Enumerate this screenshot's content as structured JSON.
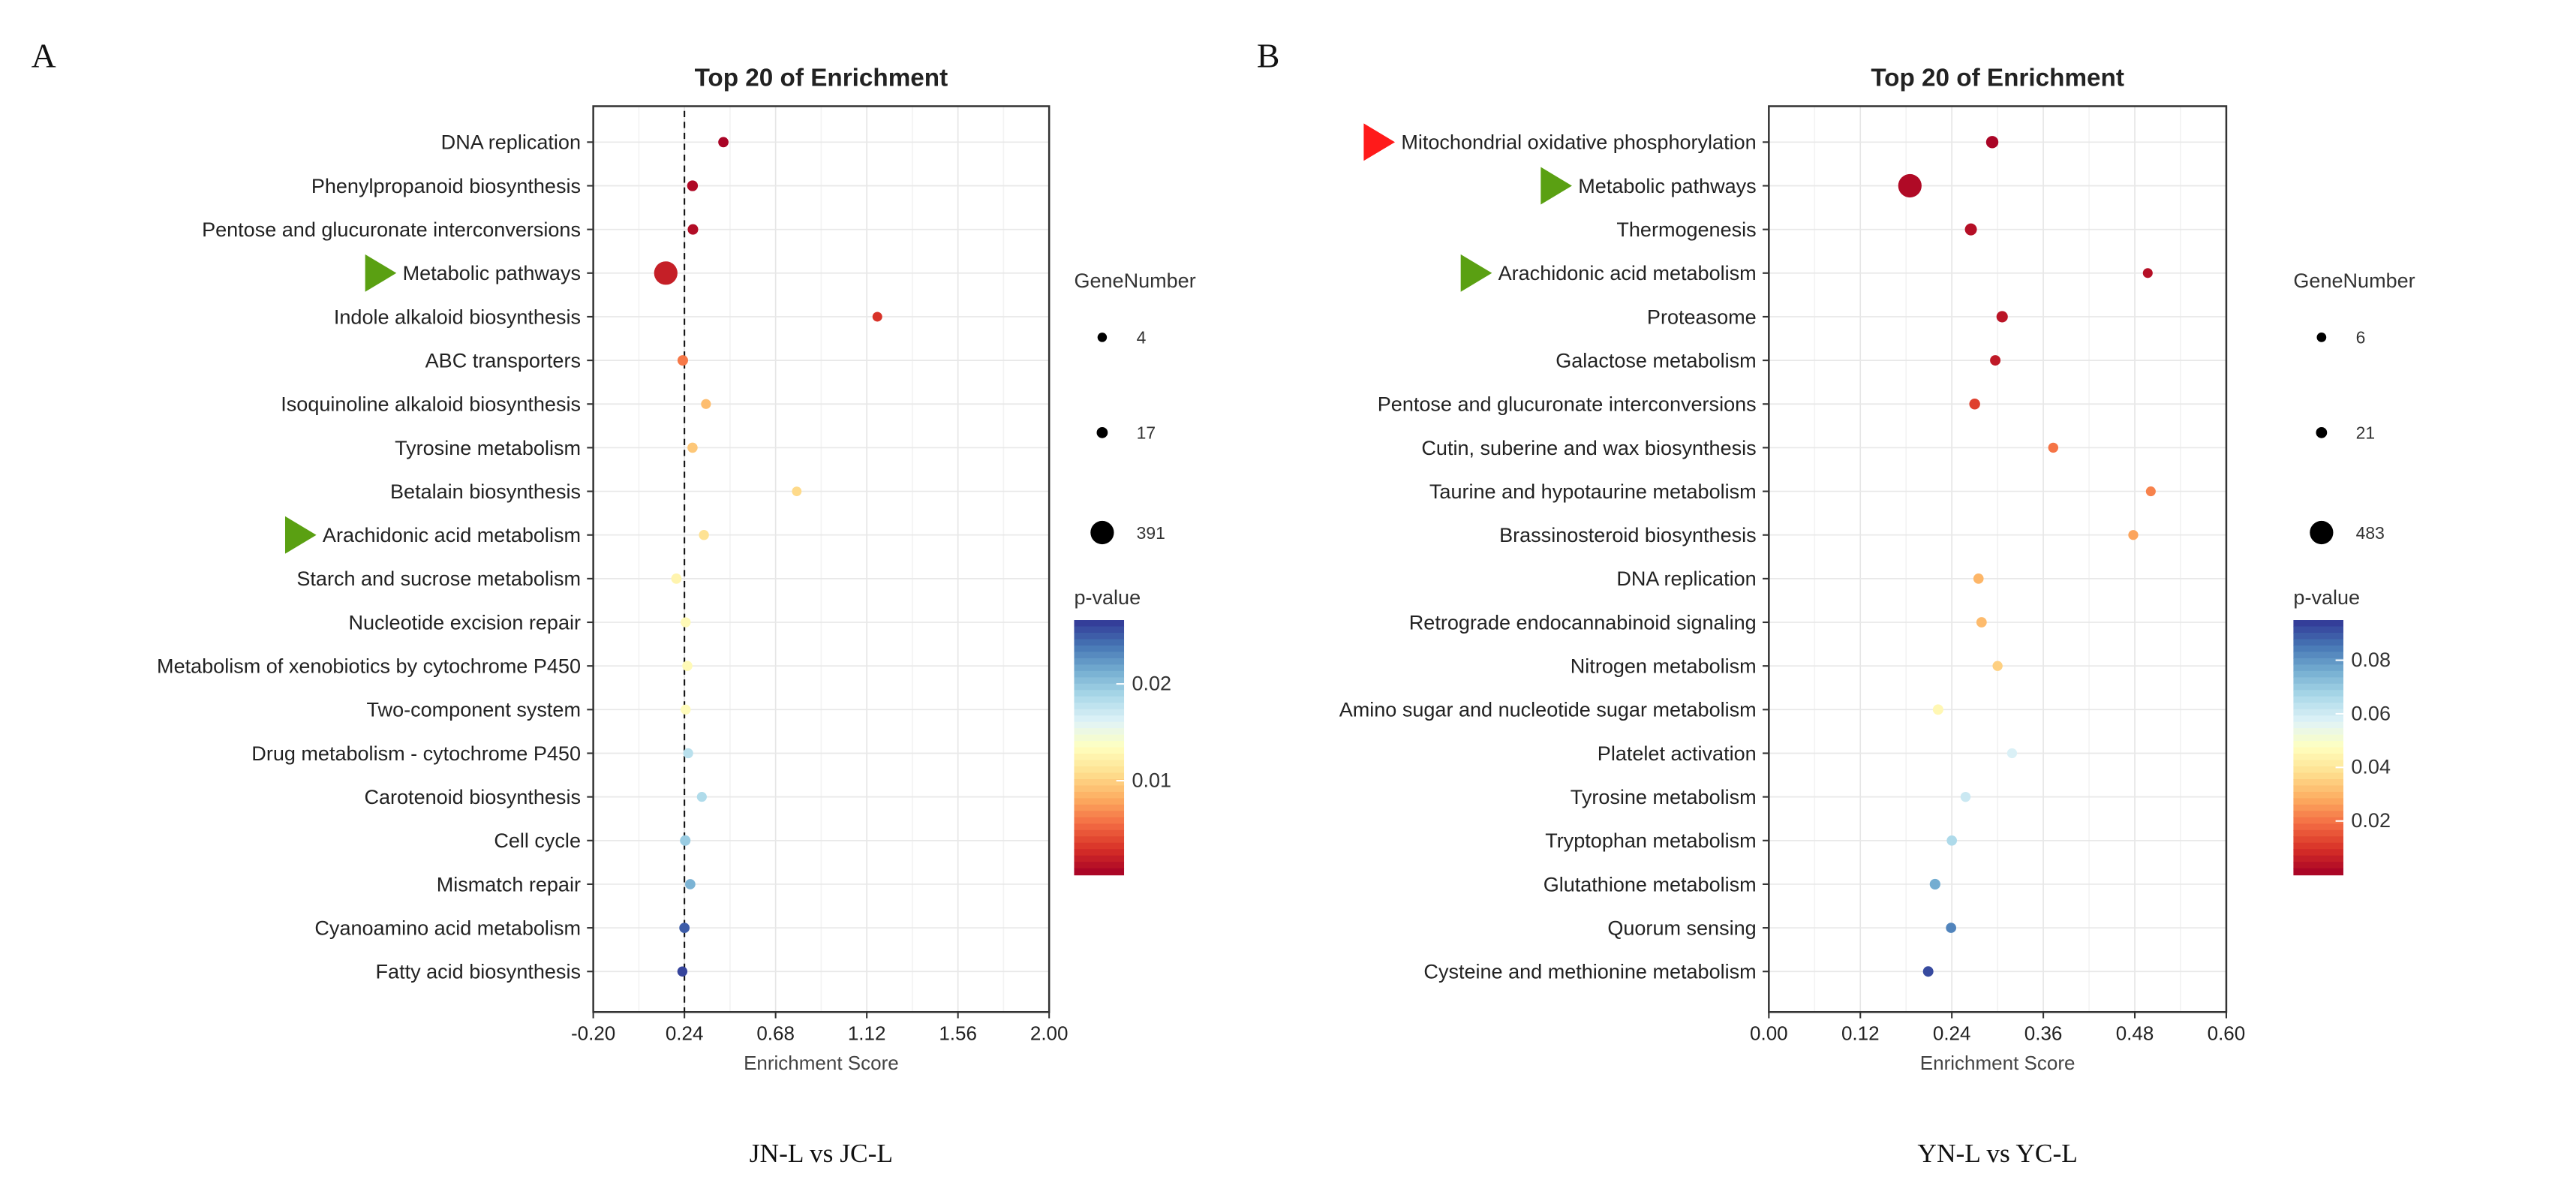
{
  "chart_data": [
    {
      "type": "scatter",
      "panel_label": "A",
      "title": "Top 20 of  Enrichment",
      "xlabel": "Enrichment Score",
      "caption": "JN-L vs JC-L",
      "xlim": [
        -0.2,
        2.0
      ],
      "xticks": [
        "-0.20",
        "0.24",
        "0.68",
        "1.12",
        "1.56",
        "2.00"
      ],
      "reference_line_x": 0.24,
      "size_legend_title": "GeneNumber",
      "size_legend": [
        4,
        17,
        391
      ],
      "color_legend_title": "p-value",
      "color_range": [
        0.0003,
        0.0266
      ],
      "color_ticks": [
        0.01,
        0.02
      ],
      "color_tick_labels": [
        "0.01",
        "0.02"
      ],
      "categories": [
        "DNA replication",
        "Phenylpropanoid biosynthesis",
        "Pentose and glucuronate interconversions",
        "Metabolic pathways",
        "Indole alkaloid biosynthesis",
        "ABC transporters",
        "Isoquinoline alkaloid biosynthesis",
        "Tyrosine metabolism",
        "Betalain biosynthesis",
        "Arachidonic acid metabolism",
        "Starch and sucrose metabolism",
        "Nucleotide excision repair",
        "Metabolism of xenobiotics by cytochrome P450",
        "Two-component system",
        "Drug metabolism - cytochrome P450",
        "Carotenoid biosynthesis",
        "Cell cycle",
        "Mismatch repair",
        "Cyanoamino acid metabolism",
        "Fatty acid biosynthesis"
      ],
      "x": [
        0.428,
        0.279,
        0.281,
        0.15,
        1.171,
        0.232,
        0.344,
        0.279,
        0.782,
        0.334,
        0.201,
        0.246,
        0.254,
        0.246,
        0.258,
        0.324,
        0.244,
        0.268,
        0.24,
        0.23
      ],
      "pvalue": [
        0.0005,
        0.0008,
        0.001,
        0.002,
        0.003,
        0.006,
        0.009,
        0.0095,
        0.0105,
        0.011,
        0.0125,
        0.013,
        0.013,
        0.0132,
        0.018,
        0.0185,
        0.0195,
        0.021,
        0.025,
        0.026
      ],
      "gene_number": [
        10,
        14,
        12,
        391,
        6,
        12,
        7,
        9,
        5,
        8,
        10,
        8,
        9,
        8,
        8,
        7,
        12,
        10,
        10,
        8
      ],
      "markers": [
        {
          "category": "Metabolic pathways",
          "color": "#5aa012"
        },
        {
          "category": "Arachidonic acid metabolism",
          "color": "#5aa012"
        }
      ]
    },
    {
      "type": "scatter",
      "panel_label": "B",
      "title": "Top 20 of  Enrichment",
      "xlabel": "Enrichment Score",
      "caption": "YN-L vs YC-L",
      "xlim": [
        0.0,
        0.6
      ],
      "xticks": [
        "0.00",
        "0.12",
        "0.24",
        "0.36",
        "0.48",
        "0.60"
      ],
      "size_legend_title": "GeneNumber",
      "size_legend": [
        6,
        21,
        483
      ],
      "color_legend_title": "p-value",
      "color_range": [
        0.0,
        0.095
      ],
      "color_ticks": [
        0.02,
        0.04,
        0.06,
        0.08
      ],
      "color_tick_labels": [
        "0.02",
        "0.04",
        "0.06",
        "0.08"
      ],
      "categories": [
        "Mitochondrial oxidative phosphorylation",
        "Metabolic pathways",
        "Thermogenesis",
        "Arachidonic acid metabolism",
        "Proteasome",
        "Galactose metabolism",
        "Pentose and glucuronate interconversions",
        "Cutin, suberine and wax biosynthesis",
        "Taurine and hypotaurine metabolism",
        "Brassinosteroid biosynthesis",
        "DNA replication",
        "Retrograde endocannabinoid signaling",
        "Nitrogen metabolism",
        "Amino sugar and nucleotide sugar metabolism",
        "Platelet activation",
        "Tyrosine metabolism",
        "Tryptophan metabolism",
        "Glutathione metabolism",
        "Quorum sensing",
        "Cysteine and methionine metabolism"
      ],
      "x": [
        0.293,
        0.185,
        0.265,
        0.497,
        0.306,
        0.297,
        0.27,
        0.373,
        0.501,
        0.478,
        0.275,
        0.279,
        0.3,
        0.222,
        0.319,
        0.258,
        0.24,
        0.218,
        0.239,
        0.209
      ],
      "pvalue": [
        0.001,
        0.002,
        0.003,
        0.003,
        0.004,
        0.005,
        0.012,
        0.02,
        0.022,
        0.027,
        0.03,
        0.031,
        0.035,
        0.045,
        0.058,
        0.061,
        0.066,
        0.076,
        0.083,
        0.092
      ],
      "gene_number": [
        40,
        483,
        35,
        8,
        25,
        14,
        18,
        10,
        8,
        9,
        12,
        13,
        10,
        14,
        9,
        10,
        12,
        16,
        12,
        14
      ],
      "markers": [
        {
          "category": "Mitochondrial oxidative phosphorylation",
          "color": "#ff1a1a"
        },
        {
          "category": "Metabolic pathways",
          "color": "#5aa012"
        },
        {
          "category": "Arachidonic acid metabolism",
          "color": "#5aa012"
        }
      ]
    }
  ],
  "colormap": [
    "#a50026",
    "#d73027",
    "#f46d43",
    "#fdae61",
    "#fee090",
    "#ffffbf",
    "#e0f3f8",
    "#abd9e9",
    "#74add1",
    "#4575b4",
    "#313695"
  ]
}
